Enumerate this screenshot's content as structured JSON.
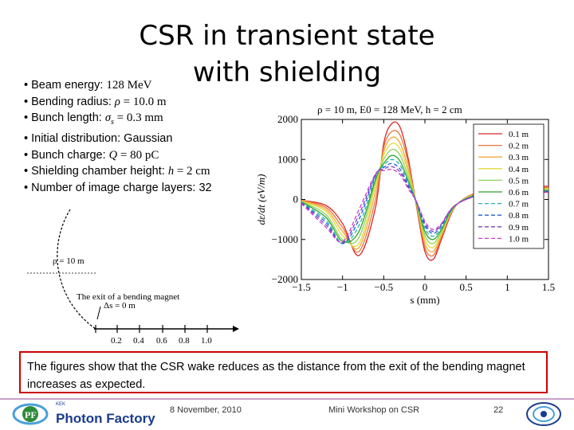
{
  "slide": {
    "title_line1": "CSR in transient state",
    "title_line2": "with shielding",
    "bullets": [
      {
        "label": "Beam energy: ",
        "value": "128 MeV"
      },
      {
        "label": "Bending radius: ",
        "symbol": "ρ",
        "value": " = 10.0 m"
      },
      {
        "label": "Bunch length: ",
        "symbol": "σ",
        "sub": "s",
        "value": " = 0.3 mm"
      },
      {
        "label": "Initial distribution: Gaussian"
      },
      {
        "label": "Bunch charge: ",
        "symbol": "Q",
        "value": " = 80 pC"
      },
      {
        "label": "Shielding chamber height: ",
        "symbol": "h",
        "value": " = 2 cm"
      },
      {
        "label": "Number of image charge layers: 32"
      }
    ],
    "note": "The figures show that the CSR wake reduces as the distance from the exit of the bending magnet increases as expected.",
    "footer": {
      "logo_text": "Photon Factory",
      "logo_sub": "KEK",
      "date": "8 November, 2010",
      "event": "Mini Workshop on CSR",
      "page": "22"
    }
  },
  "diagram": {
    "rho_label": "ρ = 10 m",
    "exit_label": "The exit of a bending magnet",
    "delta_s_label": "Δs = 0 m",
    "ticks": [
      "0.2",
      "0.4",
      "0.6",
      "0.8",
      "1.0"
    ]
  },
  "chart_data": {
    "type": "line",
    "title": "ρ = 10 m, E0 = 128 MeV, h = 2 cm",
    "xlabel": "s (mm)",
    "ylabel": "dε/dt (eV/m)",
    "xlim": [
      -1.5,
      1.5
    ],
    "ylim": [
      -2000,
      2000
    ],
    "xticks": [
      "−1.5",
      "−1",
      "−0.5",
      "0",
      "0.5",
      "1",
      "1.5"
    ],
    "yticks": [
      "2000",
      "1000",
      "0",
      "−1000",
      "−2000"
    ],
    "legend_position": "top-right",
    "series": [
      {
        "name": "0.1 m",
        "color": "#d62728",
        "dash": "solid",
        "x": [
          -1.5,
          -1.2,
          -1.0,
          -0.8,
          -0.6,
          -0.5,
          -0.4,
          -0.3,
          -0.2,
          -0.1,
          0.0,
          0.1,
          0.2,
          0.3,
          0.4,
          0.6,
          0.8,
          1.0,
          1.2,
          1.5
        ],
        "y": [
          -20,
          -150,
          -600,
          -1400,
          -200,
          1400,
          1900,
          1800,
          1000,
          -200,
          -1300,
          -1500,
          -1000,
          -450,
          -100,
          150,
          250,
          300,
          320,
          330
        ]
      },
      {
        "name": "0.2 m",
        "color": "#e8743b",
        "dash": "solid",
        "x": [
          -1.5,
          -1.2,
          -1.0,
          -0.8,
          -0.6,
          -0.5,
          -0.4,
          -0.3,
          -0.2,
          -0.1,
          0.0,
          0.1,
          0.2,
          0.3,
          0.4,
          0.6,
          0.8,
          1.0,
          1.2,
          1.5
        ],
        "y": [
          -20,
          -200,
          -700,
          -1300,
          0,
          1300,
          1700,
          1600,
          900,
          -150,
          -1200,
          -1400,
          -950,
          -420,
          -100,
          150,
          230,
          270,
          290,
          300
        ]
      },
      {
        "name": "0.3 m",
        "color": "#f2a93b",
        "dash": "solid",
        "x": [
          -1.5,
          -1.2,
          -1.0,
          -0.8,
          -0.6,
          -0.5,
          -0.4,
          -0.3,
          -0.2,
          -0.1,
          0.0,
          0.1,
          0.2,
          0.3,
          0.4,
          0.6,
          0.8,
          1.0,
          1.2,
          1.5
        ],
        "y": [
          -30,
          -250,
          -800,
          -1200,
          200,
          1200,
          1550,
          1400,
          750,
          -150,
          -1100,
          -1300,
          -900,
          -400,
          -100,
          130,
          210,
          250,
          270,
          280
        ]
      },
      {
        "name": "0.4 m",
        "color": "#e6d93a",
        "dash": "solid",
        "x": [
          -1.5,
          -1.2,
          -1.0,
          -0.8,
          -0.6,
          -0.5,
          -0.4,
          -0.3,
          -0.2,
          -0.1,
          0.0,
          0.1,
          0.2,
          0.3,
          0.4,
          0.6,
          0.8,
          1.0,
          1.2,
          1.5
        ],
        "y": [
          -40,
          -300,
          -900,
          -1100,
          350,
          1100,
          1400,
          1250,
          650,
          -120,
          -1000,
          -1200,
          -850,
          -380,
          -100,
          120,
          190,
          230,
          250,
          260
        ]
      },
      {
        "name": "0.5 m",
        "color": "#8dd35f",
        "dash": "solid",
        "x": [
          -1.5,
          -1.2,
          -1.0,
          -0.8,
          -0.6,
          -0.5,
          -0.4,
          -0.3,
          -0.2,
          -0.1,
          0.0,
          0.1,
          0.2,
          0.3,
          0.4,
          0.6,
          0.8,
          1.0,
          1.2,
          1.5
        ],
        "y": [
          -50,
          -380,
          -1000,
          -950,
          450,
          1000,
          1250,
          1100,
          550,
          -100,
          -900,
          -1100,
          -800,
          -360,
          -100,
          110,
          180,
          210,
          230,
          240
        ]
      },
      {
        "name": "0.6 m",
        "color": "#2ca02c",
        "dash": "solid",
        "x": [
          -1.5,
          -1.2,
          -1.0,
          -0.8,
          -0.6,
          -0.5,
          -0.4,
          -0.3,
          -0.2,
          -0.1,
          0.0,
          0.1,
          0.2,
          0.3,
          0.4,
          0.6,
          0.8,
          1.0,
          1.2,
          1.5
        ],
        "y": [
          -60,
          -450,
          -1050,
          -800,
          500,
          900,
          1100,
          950,
          450,
          -100,
          -800,
          -1000,
          -750,
          -340,
          -100,
          100,
          170,
          200,
          210,
          220
        ]
      },
      {
        "name": "0.7 m",
        "color": "#1fb5b0",
        "dash": "dashed",
        "x": [
          -1.5,
          -1.2,
          -1.0,
          -0.8,
          -0.6,
          -0.5,
          -0.4,
          -0.3,
          -0.2,
          -0.1,
          0.0,
          0.1,
          0.2,
          0.3,
          0.4,
          0.6,
          0.8,
          1.0,
          1.2,
          1.5
        ],
        "y": [
          -70,
          -520,
          -1100,
          -650,
          550,
          850,
          1000,
          850,
          400,
          -80,
          -720,
          -920,
          -700,
          -320,
          -100,
          90,
          160,
          190,
          200,
          210
        ]
      },
      {
        "name": "0.8 m",
        "color": "#1f5fd6",
        "dash": "dashed",
        "x": [
          -1.5,
          -1.2,
          -1.0,
          -0.8,
          -0.6,
          -0.5,
          -0.4,
          -0.3,
          -0.2,
          -0.1,
          0.0,
          0.1,
          0.2,
          0.3,
          0.4,
          0.6,
          0.8,
          1.0,
          1.2,
          1.5
        ],
        "y": [
          -80,
          -580,
          -1100,
          -500,
          600,
          800,
          900,
          750,
          350,
          -80,
          -650,
          -850,
          -650,
          -300,
          -100,
          80,
          150,
          180,
          190,
          200
        ]
      },
      {
        "name": "0.9 m",
        "color": "#7b3fc4",
        "dash": "dashed",
        "x": [
          -1.5,
          -1.2,
          -1.0,
          -0.8,
          -0.6,
          -0.5,
          -0.4,
          -0.3,
          -0.2,
          -0.1,
          0.0,
          0.1,
          0.2,
          0.3,
          0.4,
          0.6,
          0.8,
          1.0,
          1.2,
          1.5
        ],
        "y": [
          -90,
          -640,
          -1080,
          -380,
          620,
          760,
          820,
          680,
          300,
          -70,
          -600,
          -800,
          -620,
          -290,
          -100,
          80,
          140,
          170,
          180,
          190
        ]
      },
      {
        "name": "1.0 m",
        "color": "#d33cc8",
        "dash": "dashed",
        "x": [
          -1.5,
          -1.2,
          -1.0,
          -0.8,
          -0.6,
          -0.5,
          -0.4,
          -0.3,
          -0.2,
          -0.1,
          0.0,
          0.1,
          0.2,
          0.3,
          0.4,
          0.6,
          0.8,
          1.0,
          1.2,
          1.5
        ],
        "y": [
          -100,
          -700,
          -1050,
          -250,
          640,
          720,
          750,
          620,
          260,
          -60,
          -550,
          -750,
          -600,
          -280,
          -100,
          70,
          130,
          160,
          170,
          180
        ]
      }
    ]
  }
}
